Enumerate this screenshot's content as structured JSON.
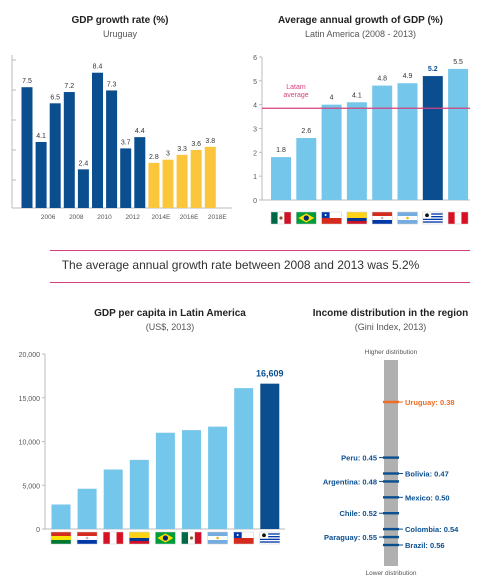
{
  "colors": {
    "dark_blue": "#0a4e8f",
    "light_blue": "#74c6ea",
    "yellow": "#fcc63c",
    "pink": "#d6417f",
    "orange": "#f26b21",
    "grey_bar": "#b0b0b0"
  },
  "banner": {
    "text": "The average annual growth rate between 2008 and 2013 was 5.2%"
  },
  "chart_data": [
    {
      "id": "gdp_growth_uruguay",
      "type": "bar",
      "title": "GDP growth rate (%)",
      "subtitle": "Uruguay",
      "x_tick_labels": [
        "2006",
        "2008",
        "2010",
        "2012",
        "2014E",
        "2016E",
        "2018E"
      ],
      "ylim": [
        0,
        9.5
      ],
      "grid": false,
      "values": [
        7.5,
        4.1,
        6.5,
        7.2,
        2.4,
        8.4,
        7.3,
        3.7,
        4.4,
        2.8,
        3,
        3.3,
        3.6,
        3.8
      ],
      "labels": [
        "7.5",
        "4.1",
        "6.5",
        "7.2",
        "2.4",
        "8.4",
        "7.3",
        "3.7",
        "4.4",
        "2.8",
        "3",
        "3.3",
        "3.6",
        "3.8"
      ],
      "kind": [
        "actual",
        "actual",
        "actual",
        "actual",
        "actual",
        "actual",
        "actual",
        "actual",
        "actual",
        "estimate",
        "estimate",
        "estimate",
        "estimate",
        "estimate"
      ]
    },
    {
      "id": "avg_growth_latam",
      "type": "bar",
      "title": "Average annual growth of GDP (%)",
      "subtitle": "Latin America (2008 - 2013)",
      "ylim": [
        0,
        6
      ],
      "y_ticks": [
        "0",
        "1",
        "2",
        "3",
        "4",
        "5",
        "6"
      ],
      "grid": false,
      "categories": [
        "Mexico",
        "Brazil",
        "Chile",
        "Colombia",
        "Paraguay",
        "Argentina",
        "Uruguay",
        "Peru"
      ],
      "values": [
        1.8,
        2.6,
        4,
        4.1,
        4.8,
        4.9,
        5.2,
        5.5
      ],
      "labels": [
        "1.8",
        "2.6",
        "4",
        "4.1",
        "4.8",
        "4.9",
        "5.2",
        "5.5"
      ],
      "highlight": "Uruguay",
      "reference_line": {
        "value": 3.85,
        "label_line1": "Latam",
        "label_line2": "average"
      }
    },
    {
      "id": "gdp_per_capita",
      "type": "bar",
      "title": "GDP per capita in Latin America",
      "subtitle": "(US$, 2013)",
      "ylim": [
        0,
        20000
      ],
      "y_ticks": [
        "0",
        "5,000",
        "10,000",
        "15,000",
        "20,000"
      ],
      "grid": false,
      "categories": [
        "Bolivia",
        "Paraguay",
        "Peru",
        "Colombia",
        "Brazil",
        "Mexico",
        "Argentina",
        "Chile",
        "Uruguay"
      ],
      "values": [
        2800,
        4600,
        6800,
        7900,
        11000,
        11300,
        11700,
        16100,
        16609
      ],
      "highlight": "Uruguay",
      "highlight_label": "16,609"
    },
    {
      "id": "gini",
      "type": "table",
      "title": "Income distribution in the region",
      "subtitle": "(Gini Index, 2013)",
      "top_label": "Higher distribution",
      "bottom_label": "Lower distribution",
      "scale": [
        0.37,
        0.57
      ],
      "entries": [
        {
          "label": "Uruguay: 0.38",
          "value": 0.38,
          "side": "right",
          "highlight": true
        },
        {
          "label": "Peru: 0.45",
          "value": 0.45,
          "side": "left"
        },
        {
          "label": "Bolivia: 0.47",
          "value": 0.47,
          "side": "right"
        },
        {
          "label": "Argentina: 0.48",
          "value": 0.48,
          "side": "left"
        },
        {
          "label": "Mexico: 0.50",
          "value": 0.5,
          "side": "right"
        },
        {
          "label": "Chile: 0.52",
          "value": 0.52,
          "side": "left"
        },
        {
          "label": "Colombia: 0.54",
          "value": 0.54,
          "side": "right"
        },
        {
          "label": "Paraguay: 0.55",
          "value": 0.55,
          "side": "left"
        },
        {
          "label": "Brazil: 0.56",
          "value": 0.56,
          "side": "right"
        }
      ]
    }
  ]
}
